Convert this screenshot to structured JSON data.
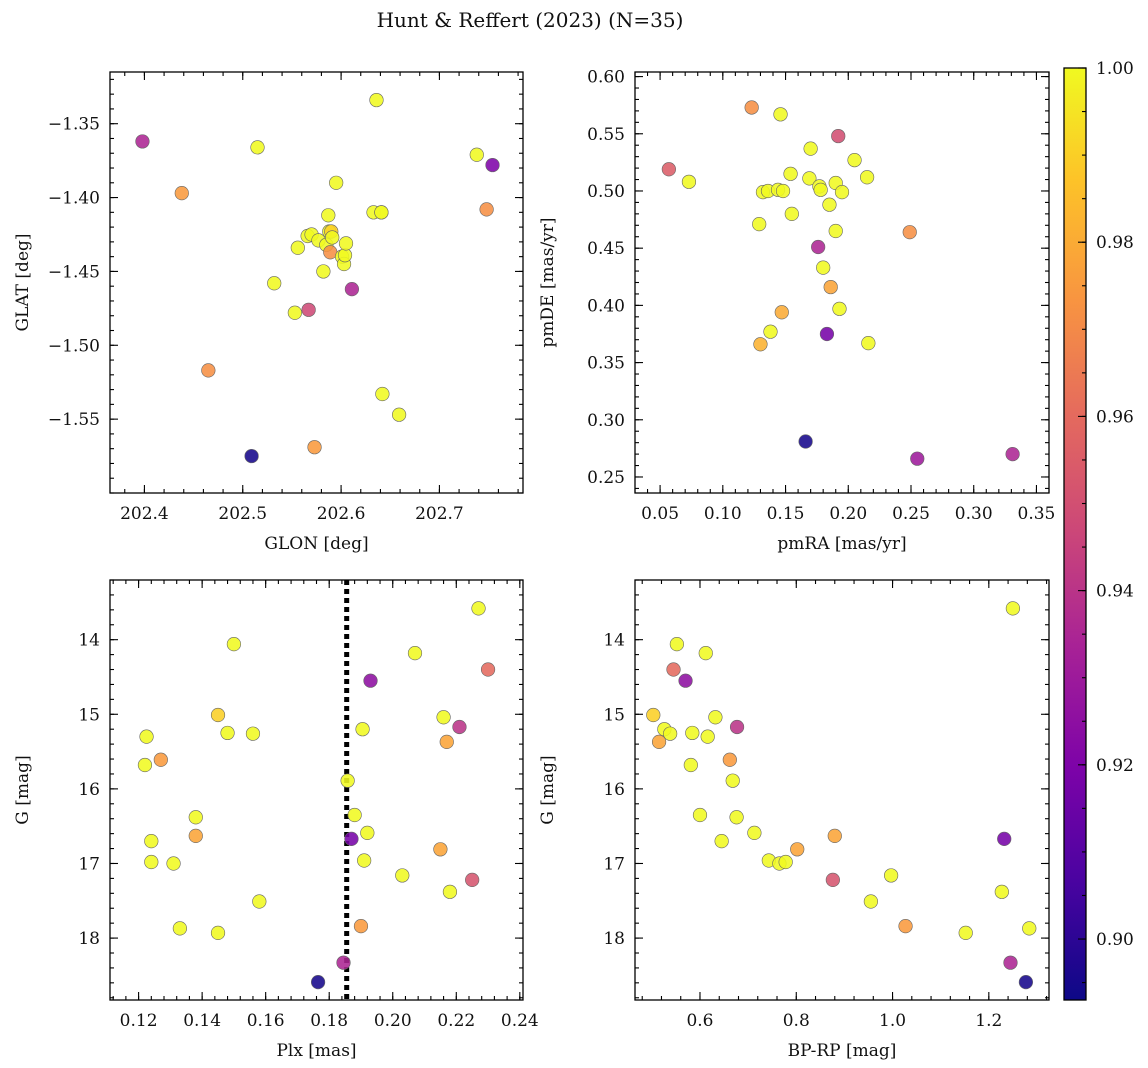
{
  "figure": {
    "title": "Hunt & Reffert (2023) (N=35)",
    "colormap": "plasma",
    "colorbar": {
      "min": 0.893,
      "max": 1.0,
      "ticks": [
        0.9,
        0.92,
        0.94,
        0.96,
        0.98,
        1.0
      ],
      "tick_labels": [
        "0.90",
        "0.92",
        "0.94",
        "0.96",
        "0.98",
        "1.00"
      ]
    }
  },
  "chart_data": [
    {
      "id": "glon-glat",
      "type": "scatter",
      "xlabel": "GLON [deg]",
      "ylabel": "GLAT [deg]",
      "xlim": [
        202.365,
        202.785
      ],
      "ylim": [
        -1.6,
        -1.315
      ],
      "xticks": [
        202.4,
        202.5,
        202.6,
        202.7
      ],
      "xtick_labels": [
        "202.4",
        "202.5",
        "202.6",
        "202.7"
      ],
      "yticks": [
        -1.35,
        -1.4,
        -1.45,
        -1.5,
        -1.55
      ],
      "ytick_labels": [
        "−1.35",
        "−1.40",
        "−1.45",
        "−1.50",
        "−1.55"
      ],
      "x": [
        202.398,
        202.438,
        202.465,
        202.509,
        202.515,
        202.532,
        202.553,
        202.556,
        202.566,
        202.567,
        202.57,
        202.573,
        202.577,
        202.582,
        202.585,
        202.587,
        202.588,
        202.589,
        202.59,
        202.591,
        202.595,
        202.601,
        202.603,
        202.604,
        202.605,
        202.611,
        202.633,
        202.636,
        202.641,
        202.642,
        202.641,
        202.659,
        202.738,
        202.748,
        202.754
      ],
      "y": [
        -1.362,
        -1.397,
        -1.517,
        -1.575,
        -1.366,
        -1.458,
        -1.478,
        -1.434,
        -1.426,
        -1.476,
        -1.425,
        -1.569,
        -1.429,
        -1.45,
        -1.432,
        -1.412,
        -1.423,
        -1.437,
        -1.423,
        -1.427,
        -1.39,
        -1.44,
        -1.445,
        -1.439,
        -1.431,
        -1.462,
        -1.41,
        -1.334,
        -1.41,
        -1.533,
        -1.41,
        -1.547,
        -1.371,
        -1.408,
        -1.378
      ],
      "c": [
        0.935,
        0.975,
        0.972,
        0.895,
        1.0,
        1.0,
        1.0,
        1.0,
        1.0,
        0.948,
        1.0,
        0.975,
        1.0,
        1.0,
        1.0,
        1.0,
        1.0,
        0.972,
        0.99,
        1.0,
        1.0,
        1.0,
        1.0,
        1.0,
        1.0,
        0.935,
        1.0,
        1.0,
        1.0,
        1.0,
        1.0,
        1.0,
        1.0,
        0.972,
        0.92
      ]
    },
    {
      "id": "pmra-pmde",
      "type": "scatter",
      "xlabel": "pmRA [mas/yr]",
      "ylabel": "pmDE [mas/yr]",
      "xlim": [
        0.03,
        0.36
      ],
      "ylim": [
        0.236,
        0.604
      ],
      "xticks": [
        0.05,
        0.1,
        0.15,
        0.2,
        0.25,
        0.3,
        0.35
      ],
      "xtick_labels": [
        "0.05",
        "0.10",
        "0.15",
        "0.20",
        "0.25",
        "0.30",
        "0.35"
      ],
      "yticks": [
        0.25,
        0.3,
        0.35,
        0.4,
        0.45,
        0.5,
        0.55,
        0.6
      ],
      "ytick_labels": [
        "0.25",
        "0.30",
        "0.35",
        "0.40",
        "0.45",
        "0.50",
        "0.55",
        "0.60"
      ],
      "x": [
        0.057,
        0.073,
        0.123,
        0.129,
        0.13,
        0.132,
        0.136,
        0.138,
        0.144,
        0.146,
        0.147,
        0.148,
        0.154,
        0.155,
        0.166,
        0.169,
        0.17,
        0.176,
        0.177,
        0.178,
        0.18,
        0.183,
        0.185,
        0.186,
        0.19,
        0.19,
        0.192,
        0.193,
        0.195,
        0.205,
        0.215,
        0.216,
        0.249,
        0.255,
        0.331
      ],
      "y": [
        0.519,
        0.508,
        0.573,
        0.471,
        0.366,
        0.499,
        0.5,
        0.377,
        0.501,
        0.567,
        0.394,
        0.5,
        0.515,
        0.48,
        0.281,
        0.511,
        0.537,
        0.451,
        0.504,
        0.501,
        0.433,
        0.375,
        0.488,
        0.416,
        0.465,
        0.507,
        0.548,
        0.397,
        0.499,
        0.527,
        0.512,
        0.367,
        0.464,
        0.266,
        0.27
      ],
      "c": [
        0.955,
        1.0,
        0.972,
        1.0,
        0.982,
        1.0,
        1.0,
        1.0,
        1.0,
        1.0,
        0.98,
        1.0,
        1.0,
        1.0,
        0.895,
        1.0,
        1.0,
        0.935,
        1.0,
        1.0,
        1.0,
        0.918,
        1.0,
        0.978,
        1.0,
        1.0,
        0.95,
        1.0,
        1.0,
        1.0,
        1.0,
        1.0,
        0.972,
        0.93,
        0.935
      ]
    },
    {
      "id": "plx-g",
      "type": "scatter",
      "xlabel": "Plx [mas]",
      "ylabel": "G [mag]",
      "xlim": [
        0.111,
        0.241
      ],
      "ylim": [
        18.83,
        13.2
      ],
      "y_inverted": true,
      "xticks": [
        0.12,
        0.14,
        0.16,
        0.18,
        0.2,
        0.22,
        0.24
      ],
      "xtick_labels": [
        "0.12",
        "0.14",
        "0.16",
        "0.18",
        "0.20",
        "0.22",
        "0.24"
      ],
      "yticks": [
        14,
        15,
        16,
        17,
        18
      ],
      "ytick_labels": [
        "14",
        "15",
        "16",
        "17",
        "18"
      ],
      "vline": {
        "x": 0.1855,
        "style": "dotted"
      },
      "x": [
        0.122,
        0.1225,
        0.124,
        0.124,
        0.127,
        0.131,
        0.133,
        0.138,
        0.138,
        0.145,
        0.145,
        0.148,
        0.15,
        0.156,
        0.158,
        0.1765,
        0.1845,
        0.1858,
        0.187,
        0.188,
        0.19,
        0.1905,
        0.191,
        0.192,
        0.193,
        0.203,
        0.207,
        0.215,
        0.216,
        0.217,
        0.218,
        0.221,
        0.225,
        0.227,
        0.23
      ],
      "y": [
        15.68,
        15.3,
        16.7,
        16.98,
        15.61,
        17.0,
        17.87,
        16.38,
        16.63,
        15.01,
        17.93,
        15.25,
        14.06,
        15.26,
        17.51,
        18.59,
        18.33,
        15.89,
        16.67,
        16.35,
        17.84,
        15.2,
        16.96,
        16.59,
        14.55,
        17.16,
        14.18,
        16.81,
        15.04,
        15.37,
        17.38,
        15.17,
        17.22,
        13.58,
        14.4
      ],
      "c": [
        1.0,
        1.0,
        1.0,
        1.0,
        0.975,
        1.0,
        1.0,
        1.0,
        0.978,
        0.99,
        1.0,
        1.0,
        1.0,
        1.0,
        1.0,
        0.895,
        0.935,
        1.0,
        0.918,
        1.0,
        0.975,
        1.0,
        1.0,
        1.0,
        0.925,
        1.0,
        1.0,
        0.978,
        1.0,
        0.978,
        1.0,
        0.94,
        0.952,
        1.0,
        0.96
      ]
    },
    {
      "id": "bprp-g",
      "type": "scatter",
      "xlabel": "BP-RP [mag]",
      "ylabel": "G [mag]",
      "xlim": [
        0.465,
        1.325
      ],
      "ylim": [
        18.83,
        13.2
      ],
      "y_inverted": true,
      "xticks": [
        0.6,
        0.8,
        1.0,
        1.2
      ],
      "xtick_labels": [
        "0.6",
        "0.8",
        "1.0",
        "1.2"
      ],
      "yticks": [
        14,
        15,
        16,
        17,
        18
      ],
      "ytick_labels": [
        "14",
        "15",
        "16",
        "17",
        "18"
      ],
      "x": [
        0.503,
        0.515,
        0.526,
        0.538,
        0.545,
        0.552,
        0.57,
        0.581,
        0.584,
        0.6,
        0.612,
        0.616,
        0.632,
        0.645,
        0.662,
        0.668,
        0.676,
        0.677,
        0.713,
        0.743,
        0.765,
        0.778,
        0.802,
        0.876,
        0.88,
        0.955,
        0.997,
        1.027,
        1.152,
        1.227,
        1.232,
        1.245,
        1.25,
        1.277,
        1.284
      ],
      "y": [
        15.01,
        15.37,
        15.2,
        15.26,
        14.4,
        14.06,
        14.55,
        15.68,
        15.25,
        16.35,
        14.18,
        15.3,
        15.04,
        16.7,
        15.61,
        15.89,
        16.38,
        15.17,
        16.59,
        16.96,
        17.0,
        16.98,
        16.81,
        17.22,
        16.63,
        17.51,
        17.16,
        17.84,
        17.93,
        17.38,
        16.67,
        18.33,
        13.58,
        18.59,
        17.87
      ],
      "c": [
        0.99,
        0.978,
        1.0,
        1.0,
        0.96,
        1.0,
        0.925,
        1.0,
        1.0,
        1.0,
        1.0,
        1.0,
        1.0,
        1.0,
        0.975,
        1.0,
        1.0,
        0.94,
        1.0,
        1.0,
        1.0,
        1.0,
        0.978,
        0.952,
        0.978,
        1.0,
        1.0,
        0.975,
        1.0,
        1.0,
        0.918,
        0.935,
        1.0,
        0.895,
        1.0
      ]
    }
  ]
}
